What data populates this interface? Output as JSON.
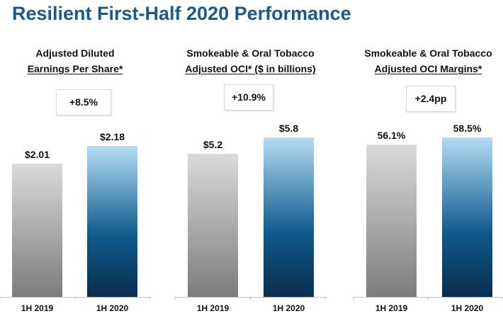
{
  "title": "Resilient First-Half 2020 Performance",
  "colors": {
    "title": "#1b5a86",
    "bar_prior_top": "#dadada",
    "bar_prior_bottom": "#7c7c7c",
    "bar_current_top": "#b4dcf5",
    "bar_current_mid": "#0e5a8c",
    "bar_current_bottom": "#0a2e4e",
    "axis": "#bfbfbf"
  },
  "chart_data": [
    {
      "type": "bar",
      "title": "Adjusted Diluted Earnings Per Share*",
      "title_line1": "Adjusted Diluted",
      "title_line2": "Earnings Per Share*",
      "change_label": "+8.5%",
      "categories": [
        "1H 2019",
        "1H 2020"
      ],
      "values": [
        2.01,
        2.18
      ],
      "value_labels": [
        "$2.01",
        "$2.18"
      ],
      "unit": "USD per share",
      "xlabel": "",
      "ylabel": "",
      "grid": false
    },
    {
      "type": "bar",
      "title": "Smokeable & Oral Tobacco Adjusted OCI* ($ in billions)",
      "title_line1": "Smokeable & Oral Tobacco",
      "title_line2": "Adjusted OCI* ($ in billions)",
      "change_label": "+10.9%",
      "categories": [
        "1H 2019",
        "1H 2020"
      ],
      "values": [
        5.2,
        5.8
      ],
      "value_labels": [
        "$5.2",
        "$5.8"
      ],
      "unit": "USD billions",
      "xlabel": "",
      "ylabel": "",
      "grid": false
    },
    {
      "type": "bar",
      "title": "Smokeable & Oral Tobacco Adjusted OCI Margins*",
      "title_line1": "Smokeable & Oral Tobacco",
      "title_line2": "Adjusted OCI Margins*",
      "change_label": "+2.4pp",
      "categories": [
        "1H 2019",
        "1H 2020"
      ],
      "values": [
        56.1,
        58.5
      ],
      "value_labels": [
        "56.1%",
        "58.5%"
      ],
      "unit": "percent",
      "xlabel": "",
      "ylabel": "",
      "grid": false
    }
  ]
}
